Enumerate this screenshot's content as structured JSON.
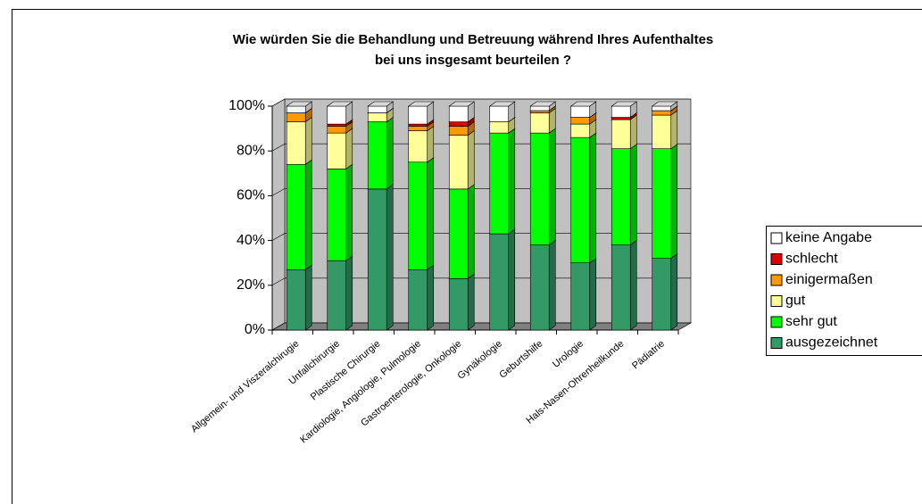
{
  "chart_data": {
    "type": "bar3d_stacked",
    "title": [
      "Wie würden Sie die Behandlung und Betreuung während Ihres Aufenthaltes",
      "bei uns insgesamt beurteilen ?"
    ],
    "categories": [
      "Allgemein- und Viszeralchirugie",
      "Unfallchirurgie",
      "Plastische Chirurgie",
      "Kardiologie, Angiologie, Pulmologie",
      "Gastroenterologie, Onkologie",
      "Gynäkologie",
      "Geburtshilfe",
      "Urologie",
      "Hals-Nasen-Ohrenheilkunde",
      "Pädiatrie"
    ],
    "series": [
      {
        "name": "ausgezeichnet",
        "color": "#339966",
        "values": [
          27,
          31,
          63,
          27,
          23,
          43,
          38,
          30,
          38,
          32
        ]
      },
      {
        "name": "sehr gut",
        "color": "#00ff00",
        "values": [
          47,
          41,
          30,
          48,
          40,
          45,
          50,
          56,
          43,
          49
        ]
      },
      {
        "name": "gut",
        "color": "#ffff99",
        "values": [
          19,
          16,
          4,
          14,
          24,
          5,
          9,
          6,
          13,
          15
        ]
      },
      {
        "name": "einigermaßen",
        "color": "#ff9900",
        "values": [
          4,
          3,
          0,
          2,
          4,
          0,
          1,
          3,
          0,
          2
        ]
      },
      {
        "name": "schlecht",
        "color": "#dd0000",
        "values": [
          0,
          1,
          0,
          1,
          2,
          0,
          0,
          0,
          1,
          0
        ]
      },
      {
        "name": "keine Angabe",
        "color": "#ffffff",
        "values": [
          3,
          8,
          3,
          8,
          7,
          7,
          2,
          5,
          5,
          2
        ]
      }
    ],
    "ylim": [
      0,
      100
    ],
    "yticks": [
      {
        "value": 0,
        "label": "0%"
      },
      {
        "value": 20,
        "label": "20%"
      },
      {
        "value": 40,
        "label": "40%"
      },
      {
        "value": 60,
        "label": "60%"
      },
      {
        "value": 80,
        "label": "80%"
      },
      {
        "value": 100,
        "label": "100%"
      }
    ],
    "grid": true,
    "legend": "right"
  }
}
